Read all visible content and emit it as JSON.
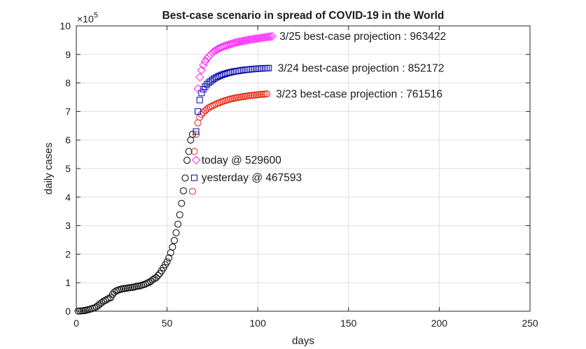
{
  "chart_data": {
    "type": "scatter",
    "title": "Best-case scenario in spread of COVID-19 in the World",
    "xlabel": "days",
    "ylabel": "daily cases",
    "xlim": [
      0,
      250
    ],
    "ylim": [
      0,
      1000000
    ],
    "y_exponent_label": "×10",
    "y_exponent_power": "5",
    "grid": true,
    "x_ticks": [
      0,
      50,
      100,
      150,
      200,
      250
    ],
    "y_ticks": [
      0,
      100000,
      200000,
      300000,
      400000,
      500000,
      600000,
      700000,
      800000,
      900000,
      1000000
    ],
    "x_tick_labels": [
      "0",
      "50",
      "100",
      "150",
      "200",
      "250"
    ],
    "y_tick_labels": [
      "0",
      "1",
      "2",
      "3",
      "4",
      "5",
      "6",
      "7",
      "8",
      "9",
      "10"
    ],
    "series": [
      {
        "marker": "circle",
        "color": "#000000",
        "x": [
          1,
          2,
          3,
          4,
          5,
          6,
          7,
          8,
          9,
          10,
          11,
          12,
          13,
          14,
          15,
          16,
          17,
          18,
          19,
          20,
          21,
          22,
          23,
          24,
          25,
          26,
          27,
          28,
          29,
          30,
          31,
          32,
          33,
          34,
          35,
          36,
          37,
          38,
          39,
          40,
          41,
          42,
          43,
          44,
          45,
          46,
          47,
          48,
          49,
          50,
          51,
          52,
          53,
          54,
          55,
          56,
          57,
          58,
          59,
          60,
          61,
          62,
          63,
          64
        ],
        "y": [
          600,
          900,
          1300,
          2000,
          2800,
          4600,
          6100,
          8000,
          9800,
          12000,
          15000,
          20000,
          25000,
          30000,
          35000,
          38000,
          42000,
          45000,
          48000,
          59000,
          67000,
          71000,
          74000,
          76000,
          78000,
          79000,
          80000,
          81000,
          82000,
          83000,
          84000,
          85000,
          87000,
          88000,
          89000,
          91000,
          93000,
          95000,
          98000,
          101000,
          105000,
          110000,
          114000,
          118000,
          125000,
          132000,
          142000,
          152000,
          163000,
          173000,
          187000,
          205000,
          225000,
          248000,
          275000,
          305000,
          338000,
          378000,
          422000,
          467000,
          529000,
          560000,
          600000,
          620000
        ]
      },
      {
        "marker": "circle",
        "color": "#e8200c",
        "x": [
          64,
          65,
          66,
          67,
          68,
          69,
          70,
          71,
          72,
          73,
          74,
          75,
          76,
          77,
          78,
          79,
          80,
          81,
          82,
          83,
          84,
          85,
          86,
          87,
          88,
          89,
          90,
          91,
          92,
          93,
          94,
          95,
          96,
          97,
          98,
          99,
          100,
          101,
          102,
          103,
          104,
          105
        ],
        "y": [
          420000,
          560000,
          620000,
          660000,
          680000,
          690000,
          697000,
          703000,
          708000,
          713000,
          717000,
          720000,
          723000,
          726000,
          729000,
          731000,
          734000,
          736000,
          738000,
          740000,
          742000,
          744000,
          745000,
          747000,
          748000,
          749000,
          750000,
          751000,
          752000,
          753000,
          754000,
          755000,
          756000,
          756500,
          757000,
          758000,
          759000,
          759500,
          760000,
          760500,
          761000,
          761516
        ]
      },
      {
        "marker": "square",
        "color": "#0000a8",
        "x": [
          65,
          66,
          67,
          68,
          69,
          70,
          71,
          72,
          73,
          74,
          75,
          76,
          77,
          78,
          79,
          80,
          81,
          82,
          83,
          84,
          85,
          86,
          87,
          88,
          89,
          90,
          91,
          92,
          93,
          94,
          95,
          96,
          97,
          98,
          99,
          100,
          101,
          102,
          103,
          104,
          105,
          106
        ],
        "y": [
          467593,
          630000,
          700000,
          740000,
          765000,
          778000,
          787000,
          795000,
          801000,
          806000,
          811000,
          815000,
          819000,
          822000,
          825000,
          828000,
          830000,
          832000,
          834000,
          836000,
          837000,
          839000,
          840000,
          841000,
          842000,
          843000,
          844000,
          845000,
          846000,
          846500,
          847000,
          848000,
          848500,
          849000,
          849500,
          850000,
          850500,
          851000,
          851300,
          851600,
          851900,
          852172
        ]
      },
      {
        "marker": "diamond",
        "color": "#ff22ff",
        "x": [
          66,
          67,
          68,
          69,
          70,
          71,
          72,
          73,
          74,
          75,
          76,
          77,
          78,
          79,
          80,
          81,
          82,
          83,
          84,
          85,
          86,
          87,
          88,
          89,
          90,
          91,
          92,
          93,
          94,
          95,
          96,
          97,
          98,
          99,
          100,
          101,
          102,
          103,
          104,
          105,
          106,
          107,
          108
        ],
        "y": [
          529600,
          780000,
          820000,
          845000,
          862000,
          875000,
          885000,
          893000,
          900000,
          906000,
          911000,
          915000,
          919000,
          922000,
          925000,
          928000,
          930000,
          932000,
          934000,
          936000,
          938000,
          940000,
          942000,
          943000,
          945000,
          946000,
          947000,
          948000,
          950000,
          951000,
          952000,
          953000,
          954000,
          955000,
          956000,
          957000,
          958000,
          959000,
          960000,
          961000,
          962000,
          962800,
          963422
        ]
      }
    ],
    "annotations": [
      {
        "text": "3/25 best-case projection : 963422",
        "x": 112,
        "y": 963422
      },
      {
        "text": "3/24 best-case projection : 852172",
        "x": 111,
        "y": 852172
      },
      {
        "text": "3/23 best-case projection : 761516",
        "x": 110,
        "y": 761516
      },
      {
        "text": "today @ 529600",
        "x": 69,
        "y": 529600
      },
      {
        "text": "yesterday @ 467593",
        "x": 69,
        "y": 467593
      }
    ]
  }
}
